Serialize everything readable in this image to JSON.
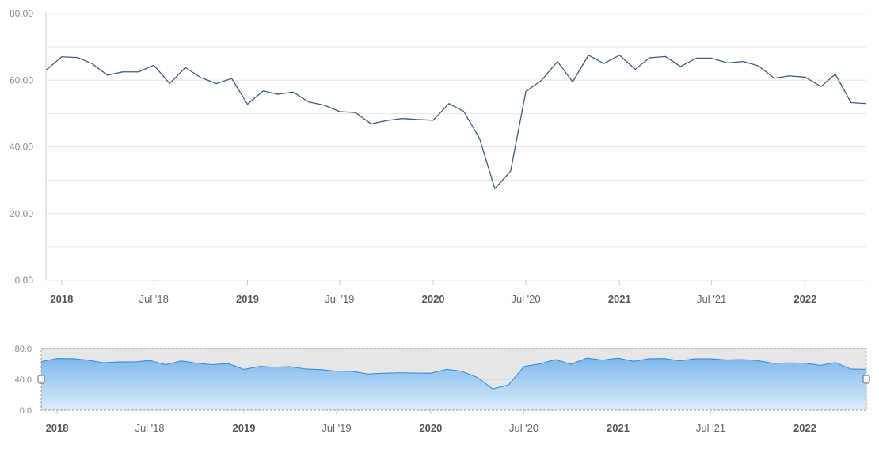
{
  "chart_data": {
    "type": "line",
    "title": "",
    "xlabel": "",
    "ylabel": "",
    "ylim": [
      0,
      80
    ],
    "y_ticks": [
      "0.00",
      "20.00",
      "40.00",
      "60.00",
      "80.00"
    ],
    "x_ticks": [
      {
        "label": "2018",
        "date": "2018-01-01",
        "major": true
      },
      {
        "label": "Jul '18",
        "date": "2018-07-01",
        "major": false
      },
      {
        "label": "2019",
        "date": "2019-01-01",
        "major": true
      },
      {
        "label": "Jul '19",
        "date": "2019-07-01",
        "major": false
      },
      {
        "label": "2020",
        "date": "2020-01-01",
        "major": true
      },
      {
        "label": "Jul '20",
        "date": "2020-07-01",
        "major": false
      },
      {
        "label": "2021",
        "date": "2021-01-01",
        "major": true
      },
      {
        "label": "Jul '21",
        "date": "2021-07-01",
        "major": false
      },
      {
        "label": "2022",
        "date": "2022-01-01",
        "major": true
      }
    ],
    "grid": true,
    "line_color": "#3d5a80",
    "navigator": {
      "y_ticks": [
        "0.0",
        "40.0",
        "80.0"
      ],
      "fill_top": "#7fb8ec",
      "fill_bottom": "#dcecfb",
      "line_color": "#2f86d6",
      "mask_color": "#e6e6e6"
    },
    "series": [
      {
        "x": [
          "2017-12-01",
          "2018-01-01",
          "2018-02-01",
          "2018-03-01",
          "2018-04-01",
          "2018-05-01",
          "2018-06-01",
          "2018-07-01",
          "2018-08-01",
          "2018-09-01",
          "2018-10-01",
          "2018-11-01",
          "2018-12-01",
          "2019-01-01",
          "2019-02-01",
          "2019-03-01",
          "2019-04-01",
          "2019-05-01",
          "2019-06-01",
          "2019-07-01",
          "2019-08-01",
          "2019-09-01",
          "2019-10-01",
          "2019-11-01",
          "2019-12-01",
          "2020-01-01",
          "2020-02-01",
          "2020-03-01",
          "2020-04-01",
          "2020-05-01",
          "2020-06-01",
          "2020-07-01",
          "2020-08-01",
          "2020-09-01",
          "2020-10-01",
          "2020-11-01",
          "2020-12-01",
          "2021-01-01",
          "2021-02-01",
          "2021-03-01",
          "2021-04-01",
          "2021-05-01",
          "2021-06-01",
          "2021-07-01",
          "2021-08-01",
          "2021-09-01",
          "2021-10-01",
          "2021-11-01",
          "2021-12-01",
          "2022-01-01",
          "2022-02-01",
          "2022-03-01",
          "2022-04-01",
          "2022-05-01"
        ],
        "values": [
          63.0,
          67.0,
          66.8,
          65.0,
          61.5,
          62.5,
          62.5,
          64.5,
          59.0,
          63.8,
          60.8,
          59.0,
          60.5,
          52.8,
          56.8,
          55.8,
          56.4,
          53.5,
          52.5,
          50.6,
          50.3,
          46.9,
          47.9,
          48.5,
          48.2,
          48.0,
          53.0,
          50.6,
          42.5,
          27.5,
          32.7,
          56.6,
          60.0,
          65.6,
          59.5,
          67.5,
          65.0,
          67.5,
          63.3,
          66.7,
          67.1,
          64.1,
          66.6,
          66.6,
          65.2,
          65.6,
          64.3,
          60.6,
          61.3,
          60.9,
          58.1,
          61.8,
          53.3,
          53.0
        ]
      }
    ]
  }
}
